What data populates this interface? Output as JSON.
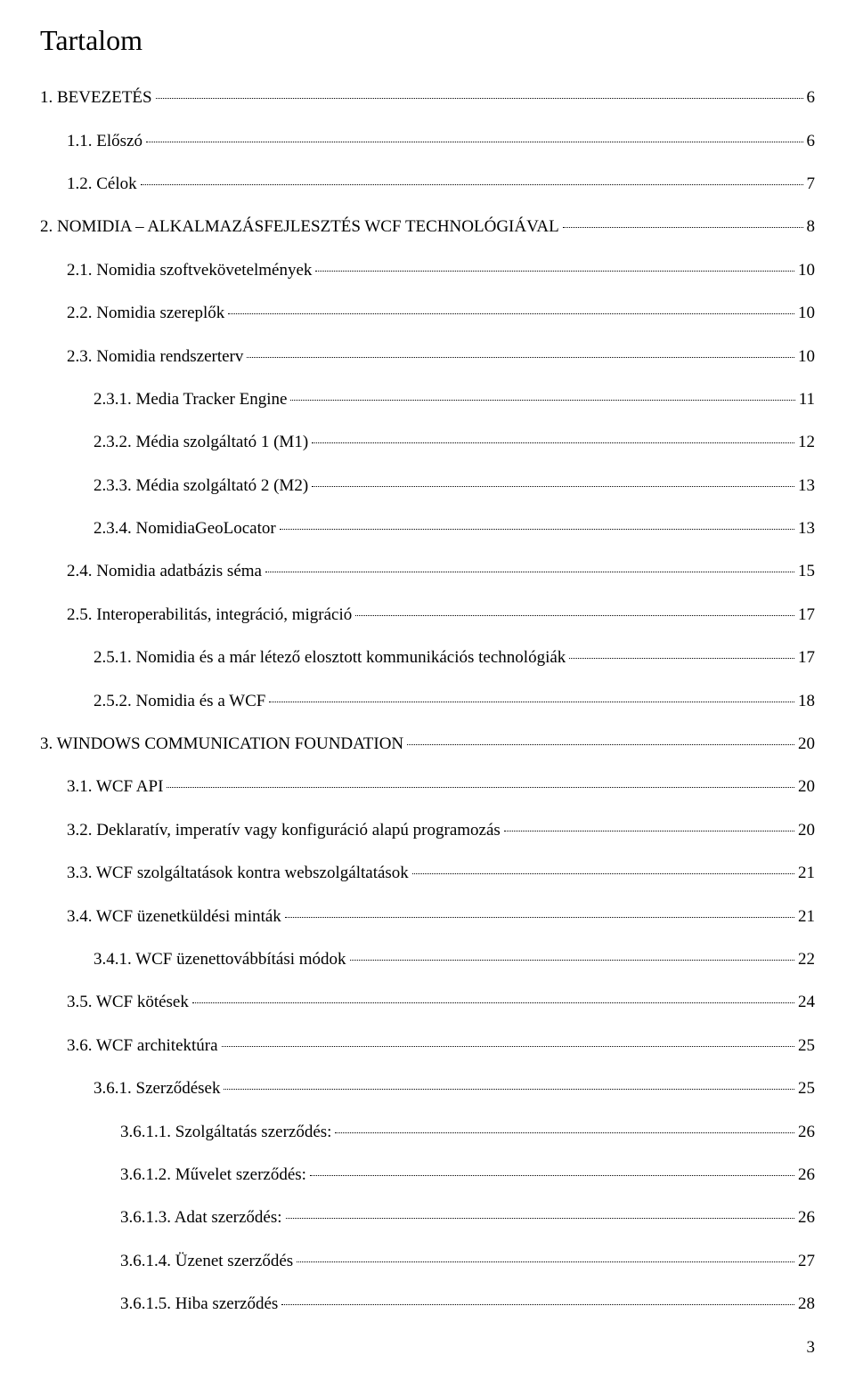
{
  "title": "Tartalom",
  "page_number": "3",
  "colors": {
    "text": "#000000",
    "background": "#ffffff",
    "leader": "#000000"
  },
  "typography": {
    "font_family": "Times New Roman",
    "body_fontsize": 19,
    "title_fontsize": 32
  },
  "entries": [
    {
      "indent": 0,
      "label": "1.   BEVEZETÉS",
      "page": "6"
    },
    {
      "indent": 1,
      "label": "1.1. Előszó",
      "page": "6"
    },
    {
      "indent": 1,
      "label": "1.2. Célok",
      "page": "7"
    },
    {
      "indent": 0,
      "label": "2.   NOMIDIA – ALKALMAZÁSFEJLESZTÉS WCF TECHNOLÓGIÁVAL",
      "page": "8"
    },
    {
      "indent": 1,
      "label": "2.1. Nomidia szoftvekövetelmények",
      "page": "10"
    },
    {
      "indent": 1,
      "label": "2.2. Nomidia szereplők",
      "page": "10"
    },
    {
      "indent": 1,
      "label": "2.3. Nomidia rendszerterv",
      "page": "10"
    },
    {
      "indent": 2,
      "label": "2.3.1. Media Tracker Engine",
      "page": "11"
    },
    {
      "indent": 2,
      "label": "2.3.2. Média szolgáltató 1 (M1)",
      "page": "12"
    },
    {
      "indent": 2,
      "label": "2.3.3. Média szolgáltató 2 (M2)",
      "page": "13"
    },
    {
      "indent": 2,
      "label": "2.3.4. NomidiaGeoLocator",
      "page": "13"
    },
    {
      "indent": 1,
      "label": "2.4. Nomidia adatbázis séma",
      "page": "15"
    },
    {
      "indent": 1,
      "label": "2.5. Interoperabilitás, integráció, migráció",
      "page": "17"
    },
    {
      "indent": 2,
      "label": "2.5.1. Nomidia és a már létező elosztott kommunikációs technológiák",
      "page": "17"
    },
    {
      "indent": 2,
      "label": "2.5.2. Nomidia és a WCF",
      "page": "18"
    },
    {
      "indent": 0,
      "label": "3.   WINDOWS COMMUNICATION FOUNDATION",
      "page": "20"
    },
    {
      "indent": 1,
      "label": "3.1. WCF API",
      "page": "20"
    },
    {
      "indent": 1,
      "label": "3.2. Deklaratív, imperatív vagy konfiguráció alapú programozás",
      "page": "20"
    },
    {
      "indent": 1,
      "label": "3.3. WCF szolgáltatások kontra webszolgáltatások",
      "page": "21"
    },
    {
      "indent": 1,
      "label": "3.4. WCF üzenetküldési minták",
      "page": "21"
    },
    {
      "indent": 2,
      "label": "3.4.1.  WCF üzenettovábbítási módok",
      "page": "22"
    },
    {
      "indent": 1,
      "label": "3.5. WCF kötések",
      "page": "24"
    },
    {
      "indent": 1,
      "label": "3.6. WCF architektúra",
      "page": "25"
    },
    {
      "indent": 2,
      "label": "3.6.1.  Szerződések",
      "page": "25"
    },
    {
      "indent": 3,
      "label": "3.6.1.1. Szolgáltatás szerződés:",
      "page": "26"
    },
    {
      "indent": 3,
      "label": "3.6.1.2. Művelet szerződés:",
      "page": "26"
    },
    {
      "indent": 3,
      "label": "3.6.1.3. Adat szerződés:",
      "page": "26"
    },
    {
      "indent": 3,
      "label": "3.6.1.4. Üzenet szerződés",
      "page": "27"
    },
    {
      "indent": 3,
      "label": "3.6.1.5. Hiba szerződés",
      "page": "28"
    }
  ]
}
